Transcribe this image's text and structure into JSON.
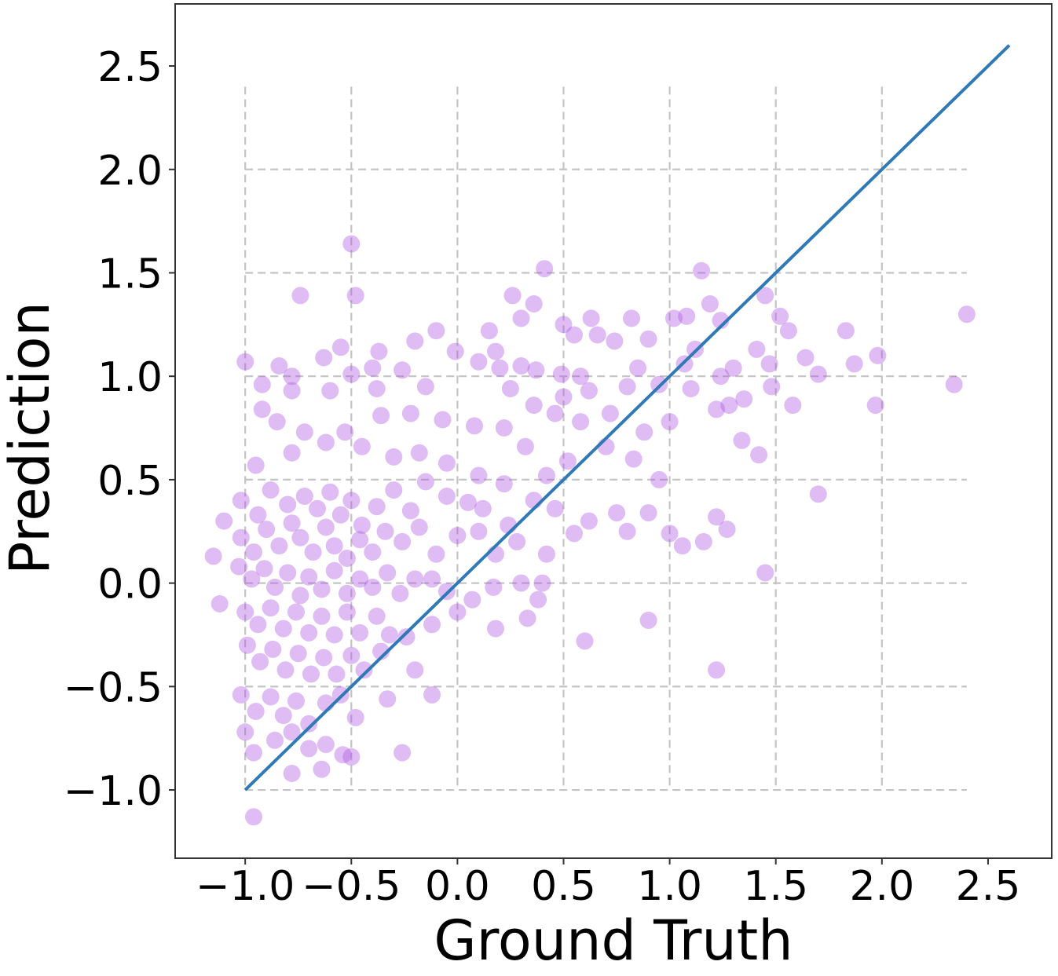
{
  "chart_data": {
    "type": "scatter",
    "title": "",
    "xlabel": "Ground Truth",
    "ylabel": "Prediction",
    "xlim": [
      -1.33,
      2.8
    ],
    "ylim": [
      -1.33,
      2.8
    ],
    "xticks": [
      -1.0,
      -0.5,
      0.0,
      0.5,
      1.0,
      1.5,
      2.0,
      2.5
    ],
    "yticks": [
      -1.0,
      -0.5,
      0.0,
      0.5,
      1.0,
      1.5,
      2.0,
      2.5
    ],
    "xtick_labels": [
      "−1.0",
      "−0.5",
      "0.0",
      "0.5",
      "1.0",
      "1.5",
      "2.0",
      "2.5"
    ],
    "ytick_labels": [
      "−1.0",
      "−0.5",
      "0.0",
      "0.5",
      "1.0",
      "1.5",
      "2.0",
      "2.5"
    ],
    "grid": true,
    "grid_extent": {
      "x": [
        -1.0,
        2.4
      ],
      "y": [
        -1.0,
        2.4
      ]
    },
    "grid_style": "dashed",
    "point_color": "#b057e0",
    "point_alpha": 0.4,
    "line_color": "#2e79b6",
    "reference_line": {
      "x": [
        -1.0,
        2.6
      ],
      "y": [
        -1.0,
        2.6
      ]
    },
    "points": [
      [
        -0.5,
        1.64
      ],
      [
        0.41,
        1.52
      ],
      [
        1.15,
        1.51
      ],
      [
        -0.74,
        1.39
      ],
      [
        -0.48,
        1.39
      ],
      [
        0.26,
        1.39
      ],
      [
        0.36,
        1.35
      ],
      [
        1.19,
        1.35
      ],
      [
        1.45,
        1.39
      ],
      [
        2.4,
        1.3
      ],
      [
        0.63,
        1.28
      ],
      [
        0.82,
        1.28
      ],
      [
        1.02,
        1.28
      ],
      [
        1.08,
        1.29
      ],
      [
        1.24,
        1.27
      ],
      [
        1.52,
        1.29
      ],
      [
        1.83,
        1.22
      ],
      [
        0.3,
        1.28
      ],
      [
        0.5,
        1.25
      ],
      [
        0.55,
        1.2
      ],
      [
        0.66,
        1.2
      ],
      [
        -0.1,
        1.22
      ],
      [
        -0.01,
        1.12
      ],
      [
        0.15,
        1.22
      ],
      [
        0.18,
        1.12
      ],
      [
        0.74,
        1.17
      ],
      [
        0.9,
        1.18
      ],
      [
        1.12,
        1.13
      ],
      [
        1.41,
        1.13
      ],
      [
        1.56,
        1.22
      ],
      [
        1.64,
        1.09
      ],
      [
        1.98,
        1.1
      ],
      [
        -0.2,
        1.17
      ],
      [
        -0.37,
        1.12
      ],
      [
        -0.55,
        1.14
      ],
      [
        -1.0,
        1.07
      ],
      [
        -0.84,
        1.05
      ],
      [
        -0.78,
        1.0
      ],
      [
        -0.63,
        1.09
      ],
      [
        -0.5,
        1.01
      ],
      [
        -0.26,
        1.03
      ],
      [
        -0.4,
        1.04
      ],
      [
        0.1,
        1.07
      ],
      [
        0.2,
        1.04
      ],
      [
        0.3,
        1.05
      ],
      [
        0.37,
        1.03
      ],
      [
        0.49,
        1.01
      ],
      [
        0.58,
        1.0
      ],
      [
        0.85,
        1.04
      ],
      [
        1.07,
        1.06
      ],
      [
        1.24,
        1.0
      ],
      [
        1.3,
        1.04
      ],
      [
        1.47,
        1.06
      ],
      [
        1.7,
        1.01
      ],
      [
        1.87,
        1.06
      ],
      [
        2.34,
        0.96
      ],
      [
        1.97,
        0.86
      ],
      [
        -0.92,
        0.96
      ],
      [
        -0.78,
        0.93
      ],
      [
        -0.6,
        0.93
      ],
      [
        -0.38,
        0.94
      ],
      [
        -0.15,
        0.95
      ],
      [
        0.25,
        0.94
      ],
      [
        0.5,
        0.9
      ],
      [
        0.62,
        0.93
      ],
      [
        0.8,
        0.95
      ],
      [
        0.95,
        0.96
      ],
      [
        1.1,
        0.94
      ],
      [
        1.35,
        0.89
      ],
      [
        1.48,
        0.95
      ],
      [
        -0.92,
        0.84
      ],
      [
        -0.85,
        0.78
      ],
      [
        -0.72,
        0.73
      ],
      [
        -0.53,
        0.73
      ],
      [
        -0.36,
        0.81
      ],
      [
        -0.22,
        0.82
      ],
      [
        -0.07,
        0.79
      ],
      [
        0.08,
        0.76
      ],
      [
        0.22,
        0.75
      ],
      [
        0.36,
        0.86
      ],
      [
        0.46,
        0.82
      ],
      [
        0.58,
        0.78
      ],
      [
        0.72,
        0.82
      ],
      [
        0.88,
        0.73
      ],
      [
        1.0,
        0.78
      ],
      [
        1.22,
        0.84
      ],
      [
        1.28,
        0.86
      ],
      [
        1.58,
        0.86
      ],
      [
        -0.95,
        0.57
      ],
      [
        -0.78,
        0.63
      ],
      [
        -0.62,
        0.68
      ],
      [
        -0.45,
        0.66
      ],
      [
        -0.3,
        0.61
      ],
      [
        -0.18,
        0.63
      ],
      [
        -0.05,
        0.58
      ],
      [
        0.1,
        0.52
      ],
      [
        0.22,
        0.48
      ],
      [
        0.32,
        0.66
      ],
      [
        0.42,
        0.52
      ],
      [
        0.52,
        0.59
      ],
      [
        0.7,
        0.66
      ],
      [
        0.83,
        0.6
      ],
      [
        0.95,
        0.5
      ],
      [
        1.34,
        0.69
      ],
      [
        1.42,
        0.62
      ],
      [
        1.7,
        0.43
      ],
      [
        -1.02,
        0.4
      ],
      [
        -0.94,
        0.33
      ],
      [
        -0.88,
        0.45
      ],
      [
        -0.8,
        0.38
      ],
      [
        -0.72,
        0.42
      ],
      [
        -0.66,
        0.36
      ],
      [
        -0.6,
        0.44
      ],
      [
        -0.55,
        0.33
      ],
      [
        -0.5,
        0.4
      ],
      [
        -0.45,
        0.28
      ],
      [
        -0.38,
        0.37
      ],
      [
        -0.3,
        0.45
      ],
      [
        -0.22,
        0.35
      ],
      [
        -0.15,
        0.49
      ],
      [
        -0.05,
        0.42
      ],
      [
        0.05,
        0.39
      ],
      [
        0.12,
        0.36
      ],
      [
        0.24,
        0.28
      ],
      [
        0.36,
        0.4
      ],
      [
        0.46,
        0.36
      ],
      [
        0.62,
        0.3
      ],
      [
        0.75,
        0.34
      ],
      [
        0.9,
        0.34
      ],
      [
        -1.1,
        0.3
      ],
      [
        -1.02,
        0.22
      ],
      [
        -0.96,
        0.15
      ],
      [
        -0.9,
        0.26
      ],
      [
        -0.84,
        0.18
      ],
      [
        -0.78,
        0.29
      ],
      [
        -0.74,
        0.22
      ],
      [
        -0.68,
        0.15
      ],
      [
        -0.62,
        0.27
      ],
      [
        -0.58,
        0.18
      ],
      [
        -0.52,
        0.12
      ],
      [
        -0.46,
        0.21
      ],
      [
        -0.4,
        0.15
      ],
      [
        -0.34,
        0.25
      ],
      [
        -0.26,
        0.2
      ],
      [
        -0.18,
        0.27
      ],
      [
        -0.1,
        0.14
      ],
      [
        0.0,
        0.23
      ],
      [
        0.1,
        0.25
      ],
      [
        0.18,
        0.14
      ],
      [
        0.28,
        0.2
      ],
      [
        0.42,
        0.14
      ],
      [
        0.55,
        0.24
      ],
      [
        0.8,
        0.25
      ],
      [
        1.0,
        0.24
      ],
      [
        1.06,
        0.18
      ],
      [
        1.16,
        0.2
      ],
      [
        1.22,
        0.32
      ],
      [
        1.27,
        0.26
      ],
      [
        -1.15,
        0.13
      ],
      [
        -1.03,
        0.08
      ],
      [
        -0.97,
        0.02
      ],
      [
        -0.91,
        0.07
      ],
      [
        -0.86,
        -0.02
      ],
      [
        -0.8,
        0.05
      ],
      [
        -0.74,
        -0.06
      ],
      [
        -0.7,
        0.03
      ],
      [
        -0.64,
        -0.03
      ],
      [
        -0.58,
        0.06
      ],
      [
        -0.52,
        -0.05
      ],
      [
        -0.46,
        0.02
      ],
      [
        -0.4,
        -0.02
      ],
      [
        -0.33,
        0.05
      ],
      [
        -0.27,
        -0.05
      ],
      [
        -0.2,
        0.02
      ],
      [
        -0.12,
        0.02
      ],
      [
        -0.05,
        -0.04
      ],
      [
        0.07,
        -0.08
      ],
      [
        0.17,
        -0.02
      ],
      [
        0.3,
        0.0
      ],
      [
        0.38,
        -0.08
      ],
      [
        0.4,
        0.0
      ],
      [
        1.45,
        0.05
      ],
      [
        -1.12,
        -0.1
      ],
      [
        -1.0,
        -0.14
      ],
      [
        -0.94,
        -0.2
      ],
      [
        -0.88,
        -0.12
      ],
      [
        -0.82,
        -0.22
      ],
      [
        -0.76,
        -0.14
      ],
      [
        -0.7,
        -0.24
      ],
      [
        -0.64,
        -0.16
      ],
      [
        -0.58,
        -0.25
      ],
      [
        -0.52,
        -0.14
      ],
      [
        -0.46,
        -0.24
      ],
      [
        -0.38,
        -0.16
      ],
      [
        -0.32,
        -0.25
      ],
      [
        -0.24,
        -0.26
      ],
      [
        -0.12,
        -0.2
      ],
      [
        0.0,
        -0.14
      ],
      [
        0.18,
        -0.22
      ],
      [
        0.33,
        -0.17
      ],
      [
        0.9,
        -0.18
      ],
      [
        -0.99,
        -0.3
      ],
      [
        -0.93,
        -0.38
      ],
      [
        -0.87,
        -0.32
      ],
      [
        -0.81,
        -0.42
      ],
      [
        -0.75,
        -0.34
      ],
      [
        -0.69,
        -0.44
      ],
      [
        -0.63,
        -0.36
      ],
      [
        -0.57,
        -0.44
      ],
      [
        -0.5,
        -0.35
      ],
      [
        -0.44,
        -0.42
      ],
      [
        -0.36,
        -0.33
      ],
      [
        -0.2,
        -0.42
      ],
      [
        0.6,
        -0.28
      ],
      [
        1.22,
        -0.42
      ],
      [
        -1.02,
        -0.54
      ],
      [
        -0.95,
        -0.62
      ],
      [
        -0.88,
        -0.55
      ],
      [
        -0.82,
        -0.64
      ],
      [
        -0.76,
        -0.57
      ],
      [
        -0.7,
        -0.68
      ],
      [
        -0.62,
        -0.58
      ],
      [
        -0.55,
        -0.54
      ],
      [
        -0.48,
        -0.65
      ],
      [
        -0.33,
        -0.56
      ],
      [
        -0.12,
        -0.54
      ],
      [
        -1.0,
        -0.72
      ],
      [
        -0.96,
        -0.82
      ],
      [
        -0.86,
        -0.76
      ],
      [
        -0.78,
        -0.72
      ],
      [
        -0.7,
        -0.8
      ],
      [
        -0.62,
        -0.78
      ],
      [
        -0.54,
        -0.83
      ],
      [
        -0.5,
        -0.84
      ],
      [
        -0.26,
        -0.82
      ],
      [
        -0.78,
        -0.92
      ],
      [
        -0.64,
        -0.9
      ],
      [
        -0.96,
        -1.13
      ]
    ]
  }
}
